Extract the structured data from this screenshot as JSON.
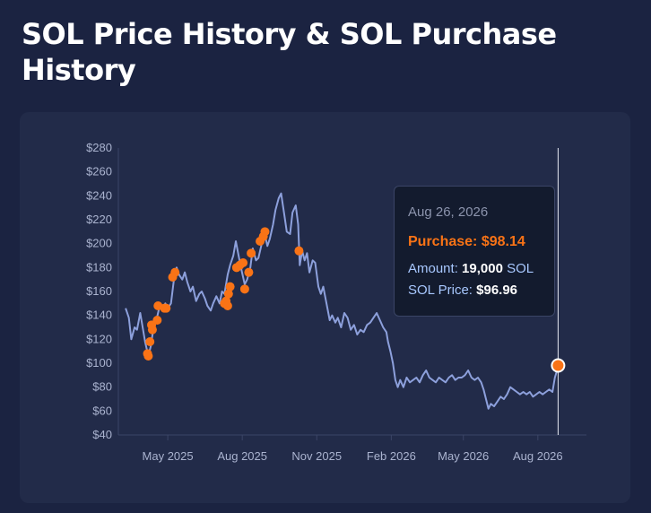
{
  "title": "SOL Price History & SOL Purchase History",
  "colors": {
    "price_line": "#8da0dc",
    "purchase_dot": "#f97316",
    "axis_text": "#aab3cf",
    "panel_bg": "#222b49",
    "page_bg": "#1b2341"
  },
  "tooltip": {
    "date": "Aug 26, 2026",
    "purchase_label": "Purchase: ",
    "purchase_value": "$98.14",
    "amount_label": "Amount: ",
    "amount_value": "19,000",
    "amount_unit": " SOL",
    "price_label": "SOL Price: ",
    "price_value": "$96.96"
  },
  "chart_data": {
    "type": "line",
    "title": "SOL Price History & SOL Purchase History",
    "xlabel": "",
    "ylabel": "",
    "ylim": [
      40,
      280
    ],
    "y_ticks": [
      40,
      60,
      80,
      100,
      120,
      140,
      160,
      180,
      200,
      220,
      240,
      260,
      280
    ],
    "y_tick_labels": [
      "$40",
      "$60",
      "$80",
      "$100",
      "$120",
      "$140",
      "$160",
      "$180",
      "$200",
      "$220",
      "$240",
      "$260",
      "$280"
    ],
    "x_ticks": [
      "2025-05-01",
      "2025-08-01",
      "2025-11-01",
      "2026-02-01",
      "2026-05-01",
      "2026-08-01"
    ],
    "x_tick_labels": [
      "May 2025",
      "Aug 2025",
      "Nov 2025",
      "Feb 2026",
      "May 2026",
      "Aug 2026"
    ],
    "xlim": [
      "2025-03-01",
      "2026-09-30"
    ],
    "grid": false,
    "series": [
      {
        "type": "line",
        "points": [
          [
            "2025-03-10",
            146
          ],
          [
            "2025-03-14",
            138
          ],
          [
            "2025-03-17",
            120
          ],
          [
            "2025-03-21",
            130
          ],
          [
            "2025-03-24",
            128
          ],
          [
            "2025-03-28",
            142
          ],
          [
            "2025-03-31",
            130
          ],
          [
            "2025-04-03",
            118
          ],
          [
            "2025-04-07",
            106
          ],
          [
            "2025-04-10",
            114
          ],
          [
            "2025-04-14",
            132
          ],
          [
            "2025-04-17",
            136
          ],
          [
            "2025-04-21",
            148
          ],
          [
            "2025-04-24",
            144
          ],
          [
            "2025-04-28",
            150
          ],
          [
            "2025-05-01",
            146
          ],
          [
            "2025-05-05",
            150
          ],
          [
            "2025-05-09",
            172
          ],
          [
            "2025-05-12",
            180
          ],
          [
            "2025-05-15",
            174
          ],
          [
            "2025-05-19",
            170
          ],
          [
            "2025-05-22",
            176
          ],
          [
            "2025-05-25",
            168
          ],
          [
            "2025-05-29",
            160
          ],
          [
            "2025-06-01",
            164
          ],
          [
            "2025-06-05",
            152
          ],
          [
            "2025-06-09",
            158
          ],
          [
            "2025-06-12",
            160
          ],
          [
            "2025-06-16",
            154
          ],
          [
            "2025-06-19",
            148
          ],
          [
            "2025-06-23",
            144
          ],
          [
            "2025-06-26",
            150
          ],
          [
            "2025-06-30",
            156
          ],
          [
            "2025-07-04",
            150
          ],
          [
            "2025-07-07",
            160
          ],
          [
            "2025-07-10",
            158
          ],
          [
            "2025-07-14",
            174
          ],
          [
            "2025-07-17",
            182
          ],
          [
            "2025-07-21",
            190
          ],
          [
            "2025-07-24",
            202
          ],
          [
            "2025-07-28",
            188
          ],
          [
            "2025-07-31",
            178
          ],
          [
            "2025-08-04",
            166
          ],
          [
            "2025-08-07",
            170
          ],
          [
            "2025-08-11",
            180
          ],
          [
            "2025-08-14",
            196
          ],
          [
            "2025-08-18",
            186
          ],
          [
            "2025-08-21",
            188
          ],
          [
            "2025-08-25",
            200
          ],
          [
            "2025-08-28",
            210
          ],
          [
            "2025-09-01",
            198
          ],
          [
            "2025-09-04",
            204
          ],
          [
            "2025-09-08",
            216
          ],
          [
            "2025-09-11",
            228
          ],
          [
            "2025-09-15",
            238
          ],
          [
            "2025-09-18",
            242
          ],
          [
            "2025-09-22",
            224
          ],
          [
            "2025-09-25",
            210
          ],
          [
            "2025-09-29",
            208
          ],
          [
            "2025-10-02",
            226
          ],
          [
            "2025-10-06",
            232
          ],
          [
            "2025-10-09",
            216
          ],
          [
            "2025-10-11",
            182
          ],
          [
            "2025-10-14",
            194
          ],
          [
            "2025-10-17",
            186
          ],
          [
            "2025-10-20",
            192
          ],
          [
            "2025-10-23",
            176
          ],
          [
            "2025-10-27",
            186
          ],
          [
            "2025-10-30",
            184
          ],
          [
            "2025-11-03",
            164
          ],
          [
            "2025-11-06",
            158
          ],
          [
            "2025-11-09",
            164
          ],
          [
            "2025-11-13",
            150
          ],
          [
            "2025-11-17",
            136
          ],
          [
            "2025-11-20",
            140
          ],
          [
            "2025-11-24",
            134
          ],
          [
            "2025-11-27",
            138
          ],
          [
            "2025-12-01",
            130
          ],
          [
            "2025-12-05",
            142
          ],
          [
            "2025-12-09",
            138
          ],
          [
            "2025-12-13",
            128
          ],
          [
            "2025-12-17",
            132
          ],
          [
            "2025-12-21",
            124
          ],
          [
            "2025-12-25",
            128
          ],
          [
            "2025-12-29",
            126
          ],
          [
            "2026-01-02",
            132
          ],
          [
            "2026-01-06",
            134
          ],
          [
            "2026-01-10",
            138
          ],
          [
            "2026-01-14",
            142
          ],
          [
            "2026-01-18",
            136
          ],
          [
            "2026-01-22",
            130
          ],
          [
            "2026-01-26",
            126
          ],
          [
            "2026-01-28",
            118
          ],
          [
            "2026-01-31",
            110
          ],
          [
            "2026-02-03",
            100
          ],
          [
            "2026-02-06",
            86
          ],
          [
            "2026-02-09",
            80
          ],
          [
            "2026-02-12",
            86
          ],
          [
            "2026-02-16",
            80
          ],
          [
            "2026-02-20",
            88
          ],
          [
            "2026-02-24",
            84
          ],
          [
            "2026-02-28",
            86
          ],
          [
            "2026-03-04",
            88
          ],
          [
            "2026-03-08",
            84
          ],
          [
            "2026-03-12",
            90
          ],
          [
            "2026-03-16",
            94
          ],
          [
            "2026-03-20",
            88
          ],
          [
            "2026-03-24",
            86
          ],
          [
            "2026-03-28",
            84
          ],
          [
            "2026-04-01",
            88
          ],
          [
            "2026-04-05",
            86
          ],
          [
            "2026-04-09",
            84
          ],
          [
            "2026-04-13",
            88
          ],
          [
            "2026-04-17",
            90
          ],
          [
            "2026-04-21",
            86
          ],
          [
            "2026-04-25",
            88
          ],
          [
            "2026-04-29",
            88
          ],
          [
            "2026-05-03",
            90
          ],
          [
            "2026-05-07",
            94
          ],
          [
            "2026-05-11",
            88
          ],
          [
            "2026-05-15",
            86
          ],
          [
            "2026-05-19",
            88
          ],
          [
            "2026-05-23",
            84
          ],
          [
            "2026-05-26",
            78
          ],
          [
            "2026-05-29",
            70
          ],
          [
            "2026-06-01",
            62
          ],
          [
            "2026-06-04",
            66
          ],
          [
            "2026-06-08",
            64
          ],
          [
            "2026-06-12",
            68
          ],
          [
            "2026-06-16",
            72
          ],
          [
            "2026-06-20",
            70
          ],
          [
            "2026-06-24",
            74
          ],
          [
            "2026-06-28",
            80
          ],
          [
            "2026-07-02",
            78
          ],
          [
            "2026-07-06",
            76
          ],
          [
            "2026-07-10",
            74
          ],
          [
            "2026-07-14",
            76
          ],
          [
            "2026-07-18",
            74
          ],
          [
            "2026-07-22",
            76
          ],
          [
            "2026-07-26",
            72
          ],
          [
            "2026-07-30",
            74
          ],
          [
            "2026-08-03",
            76
          ],
          [
            "2026-08-07",
            74
          ],
          [
            "2026-08-11",
            76
          ],
          [
            "2026-08-15",
            78
          ],
          [
            "2026-08-19",
            76
          ],
          [
            "2026-08-22",
            88
          ],
          [
            "2026-08-26",
            96.96
          ]
        ]
      },
      {
        "type": "scatter",
        "points": [
          [
            "2025-04-06",
            108
          ],
          [
            "2025-04-07",
            106
          ],
          [
            "2025-04-09",
            118
          ],
          [
            "2025-04-11",
            132
          ],
          [
            "2025-04-12",
            128
          ],
          [
            "2025-04-18",
            136
          ],
          [
            "2025-04-19",
            148
          ],
          [
            "2025-04-27",
            146
          ],
          [
            "2025-04-29",
            146
          ],
          [
            "2025-05-07",
            172
          ],
          [
            "2025-05-10",
            176
          ],
          [
            "2025-07-10",
            150
          ],
          [
            "2025-07-12",
            152
          ],
          [
            "2025-07-14",
            148
          ],
          [
            "2025-07-15",
            158
          ],
          [
            "2025-07-17",
            164
          ],
          [
            "2025-07-25",
            180
          ],
          [
            "2025-07-29",
            182
          ],
          [
            "2025-08-02",
            184
          ],
          [
            "2025-08-04",
            162
          ],
          [
            "2025-08-09",
            176
          ],
          [
            "2025-08-12",
            192
          ],
          [
            "2025-08-23",
            202
          ],
          [
            "2025-08-27",
            206
          ],
          [
            "2025-08-29",
            210
          ],
          [
            "2025-10-10",
            194
          ],
          [
            "2026-08-26",
            98.14
          ]
        ]
      }
    ]
  }
}
